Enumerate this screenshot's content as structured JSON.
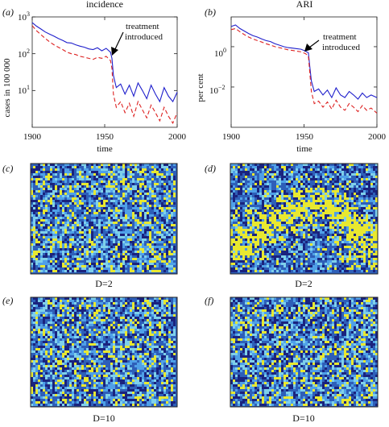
{
  "chart_data": [
    {
      "panel": "(a)",
      "type": "line",
      "title": "incidence",
      "xlabel": "time",
      "ylabel": "cases in 100 000",
      "xlim": [
        1900,
        2000
      ],
      "ylim": [
        1,
        1000
      ],
      "yscale": "log",
      "x_ticks": [
        "1900",
        "1950",
        "2000"
      ],
      "y_ticks": [
        {
          "base": "10",
          "exp": "3",
          "value": 1000
        },
        {
          "base": "10",
          "exp": "2",
          "value": 100
        },
        {
          "base": "10",
          "exp": "1",
          "value": 10
        }
      ],
      "annotation": {
        "line1": "treatment",
        "line2": "introduced",
        "x": 1955
      },
      "series": [
        {
          "color": "#1f1fcc",
          "style": "solid",
          "x": [
            1900,
            1903,
            1906,
            1909,
            1912,
            1915,
            1918,
            1921,
            1924,
            1927,
            1930,
            1933,
            1936,
            1939,
            1942,
            1945,
            1948,
            1951,
            1954,
            1955,
            1956,
            1958,
            1961,
            1964,
            1967,
            1970,
            1973,
            1976,
            1979,
            1982,
            1985,
            1988,
            1991,
            1994,
            1997,
            2000
          ],
          "y": [
            700,
            560,
            470,
            390,
            340,
            300,
            260,
            230,
            200,
            195,
            175,
            160,
            150,
            135,
            130,
            145,
            120,
            140,
            110,
            75,
            26,
            12,
            15,
            8,
            14,
            7,
            16,
            10,
            6,
            14,
            8,
            5,
            12,
            7,
            5,
            9
          ]
        },
        {
          "color": "#dd2222",
          "style": "dashed",
          "x": [
            1900,
            1903,
            1906,
            1909,
            1912,
            1915,
            1918,
            1921,
            1924,
            1927,
            1930,
            1933,
            1936,
            1939,
            1942,
            1945,
            1948,
            1951,
            1954,
            1955,
            1956,
            1958,
            1961,
            1964,
            1967,
            1970,
            1973,
            1976,
            1979,
            1982,
            1985,
            1988,
            1991,
            1994,
            1997,
            2000
          ],
          "y": [
            580,
            420,
            330,
            260,
            210,
            175,
            150,
            130,
            110,
            100,
            95,
            85,
            80,
            75,
            70,
            80,
            75,
            85,
            65,
            40,
            8,
            3.5,
            5,
            2.5,
            4.5,
            2,
            5,
            3,
            1.8,
            4,
            2.5,
            1.5,
            3.5,
            2,
            1.3,
            2.5
          ]
        }
      ]
    },
    {
      "panel": "(b)",
      "type": "line",
      "title": "ARI",
      "xlabel": "time",
      "ylabel": "per cent",
      "xlim": [
        1900,
        2000
      ],
      "ylim": [
        0.0001,
        30
      ],
      "yscale": "log",
      "x_ticks": [
        "1900",
        "1950",
        "2000"
      ],
      "y_ticks": [
        {
          "base": "10",
          "exp": "0",
          "value": 1
        },
        {
          "base": "10",
          "exp": "−2",
          "value": 0.01
        }
      ],
      "annotation": {
        "line1": "treatment",
        "line2": "introduced",
        "x": 1953
      },
      "series": [
        {
          "color": "#1f1fcc",
          "style": "solid",
          "x": [
            1900,
            1903,
            1906,
            1909,
            1912,
            1915,
            1918,
            1921,
            1924,
            1927,
            1930,
            1933,
            1936,
            1939,
            1942,
            1945,
            1948,
            1951,
            1953,
            1954,
            1955,
            1957,
            1960,
            1963,
            1966,
            1969,
            1972,
            1975,
            1978,
            1981,
            1984,
            1987,
            1990,
            1993,
            1996,
            2000
          ],
          "y": [
            10,
            12,
            8,
            6,
            4.5,
            3.5,
            3,
            2.4,
            2,
            1.8,
            1.4,
            1.2,
            1.0,
            0.9,
            0.85,
            0.8,
            0.75,
            0.6,
            0.5,
            0.1,
            0.02,
            0.006,
            0.008,
            0.004,
            0.007,
            0.003,
            0.009,
            0.004,
            0.003,
            0.006,
            0.004,
            0.0025,
            0.005,
            0.003,
            0.004,
            0.003
          ]
        },
        {
          "color": "#dd2222",
          "style": "dashed",
          "x": [
            1900,
            1903,
            1906,
            1909,
            1912,
            1915,
            1918,
            1921,
            1924,
            1927,
            1930,
            1933,
            1936,
            1939,
            1942,
            1945,
            1948,
            1951,
            1953,
            1954,
            1955,
            1957,
            1960,
            1963,
            1966,
            1969,
            1972,
            1975,
            1978,
            1981,
            1984,
            1987,
            1990,
            1993,
            1996,
            2000
          ],
          "y": [
            7,
            8,
            5.5,
            4,
            3,
            2.4,
            2,
            1.7,
            1.4,
            1.2,
            1.0,
            0.9,
            0.8,
            0.7,
            0.65,
            0.6,
            0.55,
            0.45,
            0.35,
            0.05,
            0.006,
            0.0015,
            0.002,
            0.001,
            0.0018,
            0.0008,
            0.0022,
            0.001,
            0.0007,
            0.0015,
            0.001,
            0.0006,
            0.0012,
            0.0007,
            0.0009,
            0.0005
          ]
        }
      ]
    },
    {
      "panel": "(c)",
      "type": "heatmap",
      "label": "D=2",
      "pattern": "D=2 lattice, random",
      "colors": [
        "#1a237e",
        "#2e5fb8",
        "#4fa0e8",
        "#7fd0ea",
        "#e8e830"
      ]
    },
    {
      "panel": "(d)",
      "type": "heatmap",
      "label": "D=2",
      "pattern": "D=2 lattice, yellow wave band",
      "colors": [
        "#1a237e",
        "#2e5fb8",
        "#4fa0e8",
        "#7fd0ea",
        "#e8e830"
      ]
    },
    {
      "panel": "(e)",
      "type": "heatmap",
      "label": "D=10",
      "pattern": "D=10 lattice, random",
      "colors": [
        "#1a237e",
        "#2e5fb8",
        "#4fa0e8",
        "#7fd0ea",
        "#e8e830"
      ]
    },
    {
      "panel": "(f)",
      "type": "heatmap",
      "label": "D=10",
      "pattern": "D=10 lattice, random",
      "colors": [
        "#1a237e",
        "#2e5fb8",
        "#4fa0e8",
        "#7fd0ea",
        "#e8e830"
      ]
    }
  ]
}
